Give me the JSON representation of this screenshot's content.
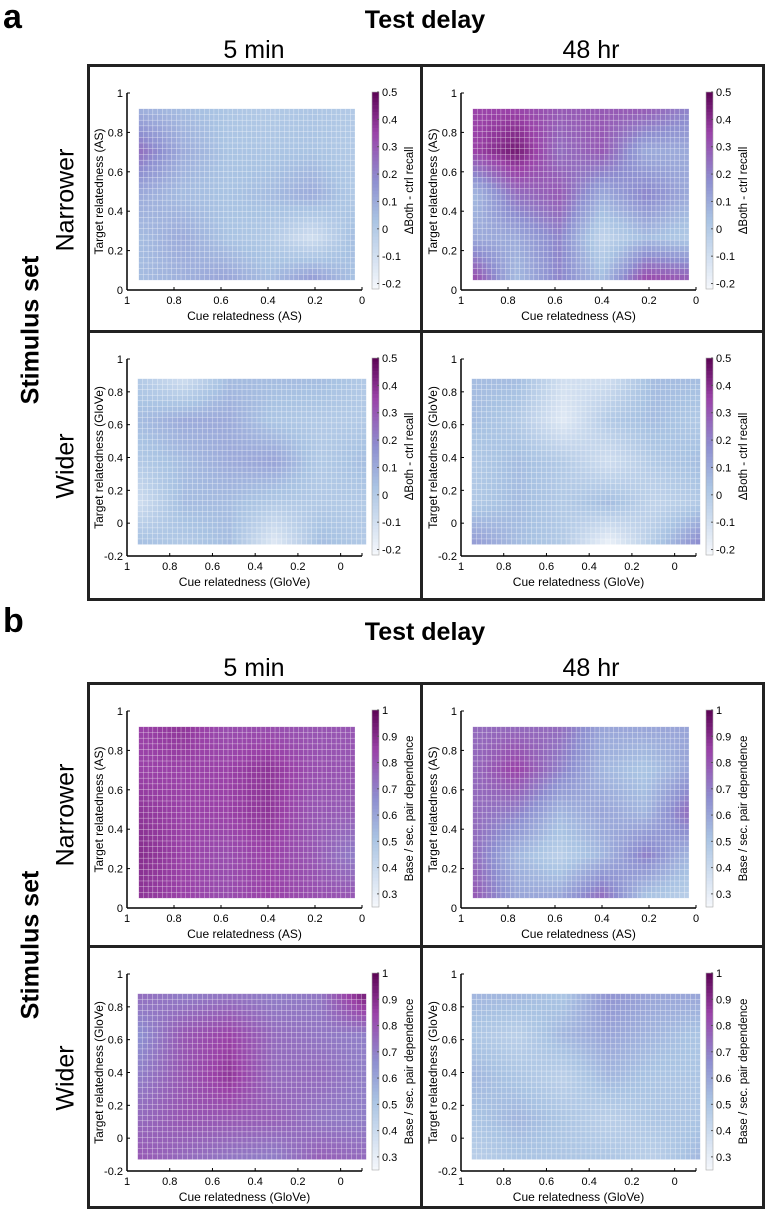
{
  "panels": [
    {
      "label": "a",
      "title": "Test delay",
      "columns": [
        "5 min",
        "48 hr"
      ],
      "row_group": "Stimulus set",
      "rows": [
        "Narrower",
        "Wider"
      ]
    },
    {
      "label": "b",
      "title": "Test delay",
      "columns": [
        "5 min",
        "48 hr"
      ],
      "row_group": "Stimulus set",
      "rows": [
        "Narrower",
        "Wider"
      ]
    }
  ],
  "colors": {
    "low": "#f4f7fb",
    "mid": "#a9c3e3",
    "midhigh": "#8e8fd0",
    "high": "#9a42a8",
    "max": "#5e0657",
    "frame": "#222222"
  },
  "chart_data": [
    {
      "id": "a-narrower-5min",
      "type": "heatmap",
      "xlabel": "Cue relatedness (AS)",
      "ylabel": "Target relatedness (AS)",
      "xlim": [
        1,
        0
      ],
      "ylim": [
        0,
        1
      ],
      "xticks": [
        "1",
        "0.8",
        "0.6",
        "0.4",
        "0.2",
        "0"
      ],
      "yticks": [
        "0",
        "0.2",
        "0.4",
        "0.6",
        "0.8",
        "1"
      ],
      "data_x": [
        0.95,
        0.03
      ],
      "data_y": [
        0.05,
        0.92
      ],
      "colorbar": {
        "label": "ΔBoth - ctrl recall",
        "range": [
          -0.22,
          0.5
        ],
        "ticks": [
          "-0.2",
          "-0.1",
          "0",
          "0.1",
          "0.2",
          "0.3",
          "0.4",
          "0.5"
        ]
      },
      "grid": [
        [
          0.08,
          0.05,
          0.02,
          0.0,
          0.02,
          0.0
        ],
        [
          0.25,
          0.1,
          0.03,
          0.02,
          0.03,
          0.0
        ],
        [
          0.1,
          0.05,
          0.03,
          0.05,
          0.1,
          0.0
        ],
        [
          0.05,
          0.1,
          0.03,
          0.0,
          -0.1,
          0.05
        ],
        [
          0.05,
          0.08,
          0.12,
          0.05,
          0.15,
          0.03
        ]
      ]
    },
    {
      "id": "a-narrower-48hr",
      "type": "heatmap",
      "xlabel": "Cue relatedness (AS)",
      "ylabel": "Target relatedness (AS)",
      "xlim": [
        1,
        0
      ],
      "ylim": [
        0,
        1
      ],
      "xticks": [
        "1",
        "0.8",
        "0.6",
        "0.4",
        "0.2",
        "0"
      ],
      "yticks": [
        "0",
        "0.2",
        "0.4",
        "0.6",
        "0.8",
        "1"
      ],
      "data_x": [
        0.95,
        0.03
      ],
      "data_y": [
        0.05,
        0.92
      ],
      "colorbar": {
        "label": "ΔBoth - ctrl recall",
        "range": [
          -0.22,
          0.5
        ],
        "ticks": [
          "-0.2",
          "-0.1",
          "0",
          "0.1",
          "0.2",
          "0.3",
          "0.4",
          "0.5"
        ]
      },
      "grid": [
        [
          0.35,
          0.35,
          0.3,
          0.3,
          0.3,
          0.2
        ],
        [
          0.35,
          0.45,
          0.25,
          0.3,
          0.1,
          0.1
        ],
        [
          0.05,
          0.25,
          0.3,
          0.1,
          0.2,
          0.1
        ],
        [
          0.1,
          0.1,
          0.2,
          -0.05,
          0.05,
          0.0
        ],
        [
          0.35,
          0.05,
          0.2,
          0.05,
          0.35,
          0.3
        ]
      ]
    },
    {
      "id": "a-wider-5min",
      "type": "heatmap",
      "xlabel": "Cue relatedness (GloVe)",
      "ylabel": "Target relatedness (GloVe)",
      "xlim": [
        1,
        -0.1
      ],
      "ylim": [
        -0.2,
        1
      ],
      "xticks": [
        "1",
        "0.8",
        "0.6",
        "0.4",
        "0.2",
        "0"
      ],
      "yticks": [
        "-0.2",
        "0",
        "0.2",
        "0.4",
        "0.6",
        "0.8",
        "1"
      ],
      "data_x": [
        0.95,
        -0.12
      ],
      "data_y": [
        -0.13,
        0.88
      ],
      "colorbar": {
        "label": "ΔBoth - ctrl recall",
        "range": [
          -0.22,
          0.5
        ],
        "ticks": [
          "-0.2",
          "-0.1",
          "0",
          "0.1",
          "0.2",
          "0.3",
          "0.4",
          "0.5"
        ]
      },
      "grid": [
        [
          0.0,
          -0.1,
          0.05,
          0.05,
          0.05,
          0.0
        ],
        [
          0.05,
          0.1,
          0.1,
          0.02,
          0.0,
          0.0
        ],
        [
          0.0,
          0.05,
          0.1,
          0.12,
          0.0,
          0.05
        ],
        [
          -0.1,
          0.05,
          0.05,
          0.0,
          0.0,
          0.0
        ],
        [
          0.05,
          0.0,
          0.05,
          -0.15,
          0.05,
          0.0
        ]
      ]
    },
    {
      "id": "a-wider-48hr",
      "type": "heatmap",
      "xlabel": "Cue relatedness (GloVe)",
      "ylabel": "Target relatedness (GloVe)",
      "xlim": [
        1,
        -0.1
      ],
      "ylim": [
        -0.2,
        1
      ],
      "xticks": [
        "1",
        "0.8",
        "0.6",
        "0.4",
        "0.2",
        "0"
      ],
      "yticks": [
        "-0.2",
        "0",
        "0.2",
        "0.4",
        "0.6",
        "0.8",
        "1"
      ],
      "data_x": [
        0.95,
        -0.12
      ],
      "data_y": [
        -0.13,
        0.88
      ],
      "colorbar": {
        "label": "ΔBoth - ctrl recall",
        "range": [
          -0.22,
          0.5
        ],
        "ticks": [
          "-0.2",
          "-0.1",
          "0",
          "0.1",
          "0.2",
          "0.3",
          "0.4",
          "0.5"
        ]
      },
      "grid": [
        [
          0.05,
          0.05,
          -0.1,
          -0.1,
          0.05,
          0.05
        ],
        [
          0.05,
          0.0,
          -0.15,
          0.0,
          0.05,
          0.0
        ],
        [
          0.0,
          0.05,
          0.0,
          -0.1,
          0.0,
          0.05
        ],
        [
          0.0,
          0.05,
          0.0,
          0.05,
          -0.05,
          0.0
        ],
        [
          0.15,
          0.05,
          0.0,
          -0.2,
          0.0,
          0.2
        ]
      ]
    },
    {
      "id": "b-narrower-5min",
      "type": "heatmap",
      "xlabel": "Cue relatedness (AS)",
      "ylabel": "Target relatedness (AS)",
      "xlim": [
        1,
        0
      ],
      "ylim": [
        0,
        1
      ],
      "xticks": [
        "1",
        "0.8",
        "0.6",
        "0.4",
        "0.2",
        "0"
      ],
      "yticks": [
        "0",
        "0.2",
        "0.4",
        "0.6",
        "0.8",
        "1"
      ],
      "data_x": [
        0.95,
        0.03
      ],
      "data_y": [
        0.05,
        0.92
      ],
      "colorbar": {
        "label": "Base / sec. pair dependence",
        "range": [
          0.25,
          1
        ],
        "ticks": [
          "0.3",
          "0.4",
          "0.5",
          "0.6",
          "0.7",
          "0.8",
          "0.9",
          "1"
        ]
      },
      "grid": [
        [
          0.85,
          0.88,
          0.82,
          0.82,
          0.8,
          0.8
        ],
        [
          0.85,
          0.85,
          0.85,
          0.88,
          0.82,
          0.8
        ],
        [
          0.88,
          0.85,
          0.85,
          0.88,
          0.8,
          0.78
        ],
        [
          0.9,
          0.85,
          0.82,
          0.85,
          0.8,
          0.7
        ],
        [
          0.88,
          0.85,
          0.82,
          0.85,
          0.82,
          0.8
        ]
      ]
    },
    {
      "id": "b-narrower-48hr",
      "type": "heatmap",
      "xlabel": "Cue relatedness (AS)",
      "ylabel": "Target relatedness (AS)",
      "xlim": [
        1,
        0
      ],
      "ylim": [
        0,
        1
      ],
      "xticks": [
        "1",
        "0.8",
        "0.6",
        "0.4",
        "0.2",
        "0"
      ],
      "yticks": [
        "0",
        "0.2",
        "0.4",
        "0.6",
        "0.8",
        "1"
      ],
      "data_x": [
        0.95,
        0.03
      ],
      "data_y": [
        0.05,
        0.92
      ],
      "colorbar": {
        "label": "Base / sec. pair dependence",
        "range": [
          0.25,
          1
        ],
        "ticks": [
          "0.3",
          "0.4",
          "0.5",
          "0.6",
          "0.7",
          "0.8",
          "0.9",
          "1"
        ]
      },
      "grid": [
        [
          0.75,
          0.75,
          0.75,
          0.6,
          0.6,
          0.6
        ],
        [
          0.75,
          0.85,
          0.7,
          0.55,
          0.5,
          0.6
        ],
        [
          0.75,
          0.7,
          0.55,
          0.6,
          0.55,
          0.75
        ],
        [
          0.75,
          0.55,
          0.45,
          0.55,
          0.7,
          0.55
        ],
        [
          0.8,
          0.6,
          0.6,
          0.75,
          0.5,
          0.45
        ]
      ]
    },
    {
      "id": "b-wider-5min",
      "type": "heatmap",
      "xlabel": "Cue relatedness (GloVe)",
      "ylabel": "Target relatedness (GloVe)",
      "xlim": [
        1,
        -0.1
      ],
      "ylim": [
        -0.2,
        1
      ],
      "xticks": [
        "1",
        "0.8",
        "0.6",
        "0.4",
        "0.2",
        "0"
      ],
      "yticks": [
        "-0.2",
        "0",
        "0.2",
        "0.4",
        "0.6",
        "0.8",
        "1"
      ],
      "data_x": [
        0.95,
        -0.12
      ],
      "data_y": [
        -0.13,
        0.88
      ],
      "colorbar": {
        "label": "Base / sec. pair dependence",
        "range": [
          0.25,
          1
        ],
        "ticks": [
          "0.3",
          "0.4",
          "0.5",
          "0.6",
          "0.7",
          "0.8",
          "0.9",
          "1"
        ]
      },
      "grid": [
        [
          0.75,
          0.7,
          0.72,
          0.7,
          0.72,
          0.95
        ],
        [
          0.65,
          0.8,
          0.85,
          0.75,
          0.72,
          0.7
        ],
        [
          0.7,
          0.8,
          0.88,
          0.75,
          0.75,
          0.7
        ],
        [
          0.75,
          0.8,
          0.8,
          0.78,
          0.72,
          0.7
        ],
        [
          0.8,
          0.75,
          0.72,
          0.7,
          0.78,
          0.75
        ]
      ]
    },
    {
      "id": "b-wider-48hr",
      "type": "heatmap",
      "xlabel": "Cue relatedness (GloVe)",
      "ylabel": "Target relatedness (GloVe)",
      "xlim": [
        1,
        -0.1
      ],
      "ylim": [
        -0.2,
        1
      ],
      "xticks": [
        "1",
        "0.8",
        "0.6",
        "0.4",
        "0.2",
        "0"
      ],
      "yticks": [
        "-0.2",
        "0",
        "0.2",
        "0.4",
        "0.6",
        "0.8",
        "1"
      ],
      "data_x": [
        0.95,
        -0.12
      ],
      "data_y": [
        -0.13,
        0.88
      ],
      "colorbar": {
        "label": "Base / sec. pair dependence",
        "range": [
          0.25,
          1
        ],
        "ticks": [
          "0.3",
          "0.4",
          "0.5",
          "0.6",
          "0.7",
          "0.8",
          "0.9",
          "1"
        ]
      },
      "grid": [
        [
          0.55,
          0.55,
          0.5,
          0.65,
          0.6,
          0.6
        ],
        [
          0.5,
          0.45,
          0.55,
          0.6,
          0.55,
          0.5
        ],
        [
          0.55,
          0.5,
          0.45,
          0.55,
          0.5,
          0.5
        ],
        [
          0.5,
          0.55,
          0.5,
          0.45,
          0.5,
          0.5
        ],
        [
          0.45,
          0.5,
          0.5,
          0.5,
          0.45,
          0.55
        ]
      ]
    }
  ]
}
